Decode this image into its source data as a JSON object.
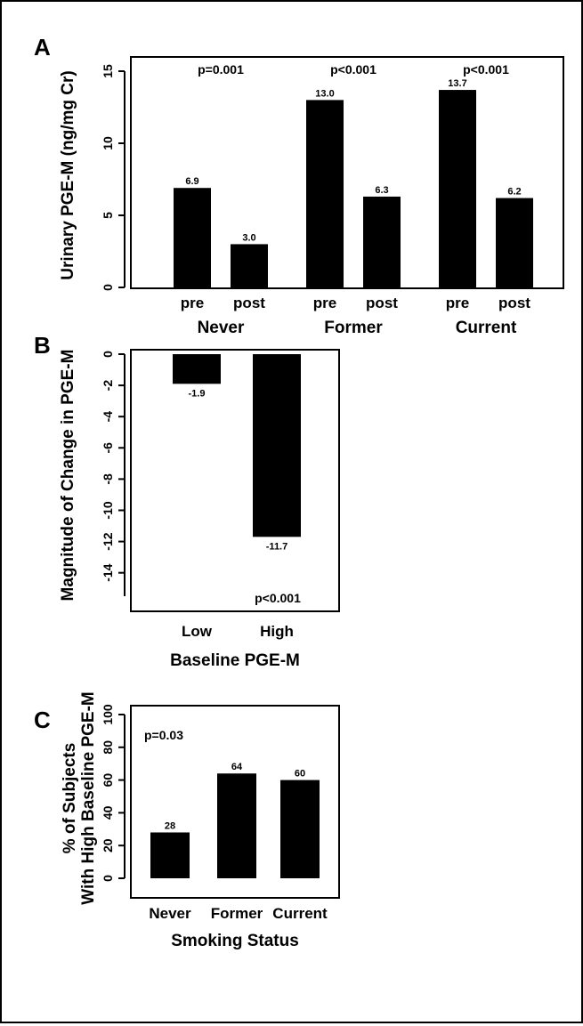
{
  "chart_data": [
    {
      "panel": "A",
      "type": "bar",
      "ylabel": "Urinary PGE-M (ng/mg Cr)",
      "ylim": [
        0,
        15
      ],
      "yticks": [
        0,
        5,
        10,
        15
      ],
      "groups": [
        {
          "name": "Never",
          "pvalue": "p=0.001",
          "bars": [
            {
              "label": "pre",
              "value": 6.9,
              "text": "6.9"
            },
            {
              "label": "post",
              "value": 3.0,
              "text": "3.0"
            }
          ]
        },
        {
          "name": "Former",
          "pvalue": "p<0.001",
          "bars": [
            {
              "label": "pre",
              "value": 13.0,
              "text": "13.0"
            },
            {
              "label": "post",
              "value": 6.3,
              "text": "6.3"
            }
          ]
        },
        {
          "name": "Current",
          "pvalue": "p<0.001",
          "bars": [
            {
              "label": "pre",
              "value": 13.7,
              "text": "13.7"
            },
            {
              "label": "post",
              "value": 6.2,
              "text": "6.2"
            }
          ]
        }
      ]
    },
    {
      "panel": "B",
      "type": "bar",
      "ylabel": "Magnitude of Change in PGE-M",
      "xlabel": "Baseline PGE-M",
      "ylim": [
        -15.5,
        0
      ],
      "yticks": [
        0,
        -2,
        -4,
        -6,
        -8,
        -10,
        -12,
        -14
      ],
      "categories": [
        "Low",
        "High"
      ],
      "values": [
        -1.9,
        -11.7
      ],
      "value_labels": [
        "-1.9",
        "-11.7"
      ],
      "pvalue": "p<0.001"
    },
    {
      "panel": "C",
      "type": "bar",
      "ylabel": [
        "% of Subjects",
        "With High Baseline PGE-M"
      ],
      "xlabel": "Smoking Status",
      "ylim": [
        0,
        100
      ],
      "yticks": [
        0,
        20,
        40,
        60,
        80,
        100
      ],
      "categories": [
        "Never",
        "Former",
        "Current"
      ],
      "values": [
        28,
        64,
        60
      ],
      "value_labels": [
        "28",
        "64",
        "60"
      ],
      "pvalue": "p=0.03"
    }
  ]
}
